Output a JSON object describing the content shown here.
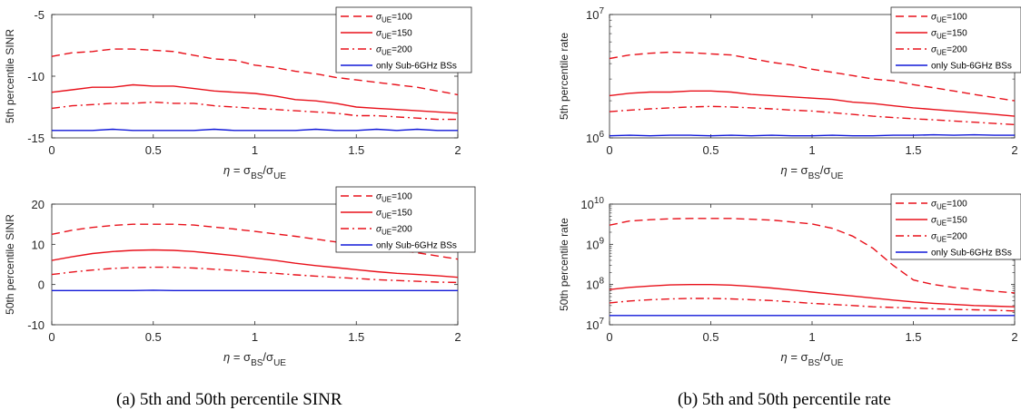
{
  "captions": {
    "a": "(a) 5th and 50th percentile SINR",
    "b": "(b) 5th and 50th percentile rate"
  },
  "series_styles": [
    {
      "key": "s100",
      "color": "#e8101a",
      "dash": "dashed"
    },
    {
      "key": "s150",
      "color": "#e8101a",
      "dash": "solid"
    },
    {
      "key": "s200",
      "color": "#e8101a",
      "dash": "dashdot"
    },
    {
      "key": "sub6",
      "color": "#1018d8",
      "dash": "solid"
    }
  ],
  "legend": [
    {
      "key": "s100",
      "prefix": "σ",
      "sub": "UE",
      "suffix": "=100"
    },
    {
      "key": "s150",
      "prefix": "σ",
      "sub": "UE",
      "suffix": "=150"
    },
    {
      "key": "s200",
      "prefix": "σ",
      "sub": "UE",
      "suffix": "=200"
    },
    {
      "key": "sub6",
      "prefix": "",
      "sub": "",
      "suffix": "only Sub-6GHz BSs"
    }
  ],
  "xlabel": {
    "eta": "η",
    "eq": " = σ",
    "bs": "BS",
    "slash": "/σ",
    "ue": "UE"
  },
  "chart_data": [
    {
      "id": "a-top",
      "type": "line",
      "ylabel": "5th percentile SINR",
      "yscale": "linear",
      "xlim": [
        0,
        2
      ],
      "ylim": [
        -15,
        -5
      ],
      "xticks": [
        0,
        0.5,
        1,
        1.5,
        2
      ],
      "xticklabels": [
        "0",
        "0.5",
        "1",
        "1.5",
        "2"
      ],
      "yticks": [
        -15,
        -10,
        -5
      ],
      "yticklabels": [
        "-15",
        "-10",
        "-5"
      ],
      "legend_position": "top-right",
      "x": [
        0,
        0.1,
        0.2,
        0.3,
        0.4,
        0.5,
        0.6,
        0.7,
        0.8,
        0.9,
        1.0,
        1.1,
        1.2,
        1.3,
        1.4,
        1.5,
        1.6,
        1.7,
        1.8,
        1.9,
        2.0
      ],
      "series": [
        {
          "key": "s100",
          "name": "σUE=100",
          "values": [
            -8.4,
            -8.1,
            -8.0,
            -7.8,
            -7.8,
            -7.9,
            -8.0,
            -8.3,
            -8.6,
            -8.7,
            -9.1,
            -9.3,
            -9.6,
            -9.8,
            -10.1,
            -10.3,
            -10.5,
            -10.7,
            -10.9,
            -11.2,
            -11.5
          ]
        },
        {
          "key": "s150",
          "name": "σUE=150",
          "values": [
            -11.3,
            -11.1,
            -10.9,
            -10.9,
            -10.7,
            -10.8,
            -10.8,
            -11.0,
            -11.2,
            -11.3,
            -11.4,
            -11.6,
            -11.9,
            -12.0,
            -12.2,
            -12.5,
            -12.6,
            -12.7,
            -12.8,
            -12.9,
            -13.0
          ]
        },
        {
          "key": "s200",
          "name": "σUE=200",
          "values": [
            -12.6,
            -12.4,
            -12.3,
            -12.2,
            -12.2,
            -12.1,
            -12.2,
            -12.2,
            -12.4,
            -12.5,
            -12.6,
            -12.7,
            -12.8,
            -12.9,
            -13.0,
            -13.2,
            -13.2,
            -13.3,
            -13.4,
            -13.5,
            -13.5
          ]
        },
        {
          "key": "sub6",
          "name": "only Sub-6GHz BSs",
          "values": [
            -14.4,
            -14.4,
            -14.4,
            -14.3,
            -14.4,
            -14.4,
            -14.4,
            -14.4,
            -14.3,
            -14.4,
            -14.4,
            -14.4,
            -14.4,
            -14.3,
            -14.4,
            -14.4,
            -14.3,
            -14.4,
            -14.3,
            -14.4,
            -14.4
          ]
        }
      ]
    },
    {
      "id": "a-bottom",
      "type": "line",
      "ylabel": "50th percentile SINR",
      "yscale": "linear",
      "xlim": [
        0,
        2
      ],
      "ylim": [
        -10,
        20
      ],
      "xticks": [
        0,
        0.5,
        1,
        1.5,
        2
      ],
      "xticklabels": [
        "0",
        "0.5",
        "1",
        "1.5",
        "2"
      ],
      "yticks": [
        -10,
        0,
        10,
        20
      ],
      "yticklabels": [
        "-10",
        "0",
        "10",
        "20"
      ],
      "legend_position": "top-right",
      "x": [
        0,
        0.1,
        0.2,
        0.3,
        0.4,
        0.5,
        0.6,
        0.7,
        0.8,
        0.9,
        1.0,
        1.1,
        1.2,
        1.3,
        1.4,
        1.5,
        1.6,
        1.7,
        1.8,
        1.9,
        2.0
      ],
      "series": [
        {
          "key": "s100",
          "name": "σUE=100",
          "values": [
            12.5,
            13.5,
            14.2,
            14.7,
            15.0,
            15.0,
            15.0,
            14.8,
            14.3,
            13.8,
            13.2,
            12.6,
            12.0,
            11.3,
            10.6,
            10.0,
            9.3,
            8.6,
            7.9,
            7.1,
            6.3
          ]
        },
        {
          "key": "s150",
          "name": "σUE=150",
          "values": [
            6.0,
            6.9,
            7.7,
            8.2,
            8.5,
            8.6,
            8.5,
            8.2,
            7.7,
            7.2,
            6.6,
            6.0,
            5.3,
            4.7,
            4.2,
            3.7,
            3.2,
            2.8,
            2.5,
            2.2,
            1.8
          ]
        },
        {
          "key": "s200",
          "name": "σUE=200",
          "values": [
            2.5,
            3.1,
            3.6,
            4.0,
            4.2,
            4.3,
            4.3,
            4.1,
            3.8,
            3.5,
            3.1,
            2.8,
            2.4,
            2.1,
            1.8,
            1.5,
            1.2,
            1.0,
            0.8,
            0.6,
            0.5
          ]
        },
        {
          "key": "sub6",
          "name": "only Sub-6GHz BSs",
          "values": [
            -1.5,
            -1.5,
            -1.5,
            -1.5,
            -1.5,
            -1.4,
            -1.5,
            -1.5,
            -1.5,
            -1.5,
            -1.5,
            -1.5,
            -1.5,
            -1.5,
            -1.5,
            -1.5,
            -1.5,
            -1.5,
            -1.5,
            -1.5,
            -1.5
          ]
        }
      ]
    },
    {
      "id": "b-top",
      "type": "line",
      "ylabel": "5th percentile rate",
      "yscale": "log",
      "xlim": [
        0,
        2
      ],
      "ylim": [
        1000000,
        10000000
      ],
      "xticks": [
        0,
        0.5,
        1,
        1.5,
        2
      ],
      "xticklabels": [
        "0",
        "0.5",
        "1",
        "1.5",
        "2"
      ],
      "yticks": [
        1000000,
        10000000
      ],
      "yticklabels_base": [
        "10",
        "10"
      ],
      "yticklabels_exp": [
        "6",
        "7"
      ],
      "legend_position": "top-right",
      "x": [
        0,
        0.1,
        0.2,
        0.3,
        0.4,
        0.5,
        0.6,
        0.7,
        0.8,
        0.9,
        1.0,
        1.1,
        1.2,
        1.3,
        1.4,
        1.5,
        1.6,
        1.7,
        1.8,
        1.9,
        2.0
      ],
      "series": [
        {
          "key": "s100",
          "name": "σUE=100",
          "values": [
            4400000,
            4700000,
            4850000,
            4950000,
            4900000,
            4800000,
            4700000,
            4400000,
            4100000,
            3900000,
            3600000,
            3400000,
            3200000,
            3000000,
            2900000,
            2700000,
            2550000,
            2400000,
            2250000,
            2120000,
            2000000
          ]
        },
        {
          "key": "s150",
          "name": "σUE=150",
          "values": [
            2200000,
            2300000,
            2350000,
            2350000,
            2400000,
            2400000,
            2350000,
            2250000,
            2200000,
            2150000,
            2100000,
            2050000,
            1950000,
            1900000,
            1820000,
            1750000,
            1700000,
            1650000,
            1600000,
            1550000,
            1500000
          ]
        },
        {
          "key": "s200",
          "name": "σUE=200",
          "values": [
            1630000,
            1680000,
            1720000,
            1750000,
            1780000,
            1800000,
            1780000,
            1750000,
            1720000,
            1680000,
            1650000,
            1600000,
            1550000,
            1500000,
            1460000,
            1430000,
            1400000,
            1370000,
            1340000,
            1310000,
            1280000
          ]
        },
        {
          "key": "sub6",
          "name": "only Sub-6GHz BSs",
          "values": [
            1040000,
            1050000,
            1040000,
            1050000,
            1050000,
            1040000,
            1050000,
            1040000,
            1050000,
            1040000,
            1040000,
            1050000,
            1040000,
            1040000,
            1050000,
            1050000,
            1060000,
            1050000,
            1060000,
            1050000,
            1050000
          ]
        }
      ]
    },
    {
      "id": "b-bottom",
      "type": "line",
      "ylabel": "50th percentile rate",
      "yscale": "log",
      "xlim": [
        0,
        2
      ],
      "ylim": [
        10000000,
        10000000000
      ],
      "xticks": [
        0,
        0.5,
        1,
        1.5,
        2
      ],
      "xticklabels": [
        "0",
        "0.5",
        "1",
        "1.5",
        "2"
      ],
      "yticks": [
        10000000,
        100000000,
        1000000000,
        10000000000
      ],
      "yticklabels_base": [
        "10",
        "10",
        "10",
        "10"
      ],
      "yticklabels_exp": [
        "7",
        "8",
        "9",
        "10"
      ],
      "legend_position": "top-right",
      "x": [
        0,
        0.1,
        0.2,
        0.3,
        0.4,
        0.5,
        0.6,
        0.7,
        0.8,
        0.9,
        1.0,
        1.1,
        1.2,
        1.3,
        1.4,
        1.5,
        1.6,
        1.7,
        1.8,
        1.9,
        2.0
      ],
      "series": [
        {
          "key": "s100",
          "name": "σUE=100",
          "values": [
            3000000000,
            3800000000,
            4100000000,
            4300000000,
            4400000000,
            4400000000,
            4400000000,
            4200000000,
            4000000000,
            3600000000,
            3200000000,
            2500000000,
            1600000000,
            800000000,
            300000000,
            130000000,
            100000000,
            85000000,
            75000000,
            68000000,
            62000000
          ]
        },
        {
          "key": "s150",
          "name": "σUE=150",
          "values": [
            75000000,
            85000000,
            92000000,
            98000000,
            100000000,
            100000000,
            97000000,
            90000000,
            82000000,
            73000000,
            65000000,
            58000000,
            52000000,
            46000000,
            41000000,
            37000000,
            34000000,
            32000000,
            30000000,
            29000000,
            28000000
          ]
        },
        {
          "key": "s200",
          "name": "σUE=200",
          "values": [
            35000000,
            39000000,
            42000000,
            44000000,
            45000000,
            45000000,
            44000000,
            42000000,
            40000000,
            37000000,
            34000000,
            32000000,
            30000000,
            28000000,
            27000000,
            26000000,
            25000000,
            24000000,
            23500000,
            23000000,
            22000000
          ]
        },
        {
          "key": "sub6",
          "name": "only Sub-6GHz BSs",
          "values": [
            17000000,
            17000000,
            17000000,
            17000000,
            17000000,
            17000000,
            17000000,
            17000000,
            17000000,
            17000000,
            17000000,
            17000000,
            17000000,
            17000000,
            17000000,
            17000000,
            17000000,
            17000000,
            17000000,
            17000000,
            17000000
          ]
        }
      ]
    }
  ]
}
